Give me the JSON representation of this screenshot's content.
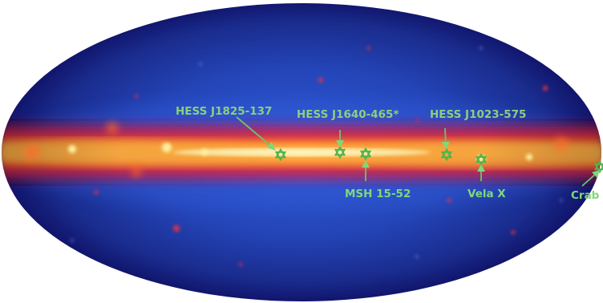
{
  "map": {
    "projection": "Aitoff/Hammer all-sky ellipse",
    "colors": {
      "background": "#ffffff",
      "sky_outer": "#10146a",
      "sky_inner": "#2a4fc8",
      "plane_core": "#fff2a0",
      "plane_mid": "#ff7a1e",
      "plane_edge": "#e0203a",
      "label_green": "#7fd87a",
      "marker_green": "#4fb54a"
    }
  },
  "sources": [
    {
      "key": "hess1825",
      "label": "HESS J1825-137"
    },
    {
      "key": "hess1640",
      "label": "HESS J1640-465*"
    },
    {
      "key": "hess1023",
      "label": "HESS J1023-575"
    },
    {
      "key": "msh",
      "label": "MSH 15-52"
    },
    {
      "key": "vela",
      "label": "Vela X"
    },
    {
      "key": "crab",
      "label": "Crab"
    }
  ],
  "icons": {
    "marker": "star-of-david-icon",
    "pointer": "arrow-icon"
  }
}
